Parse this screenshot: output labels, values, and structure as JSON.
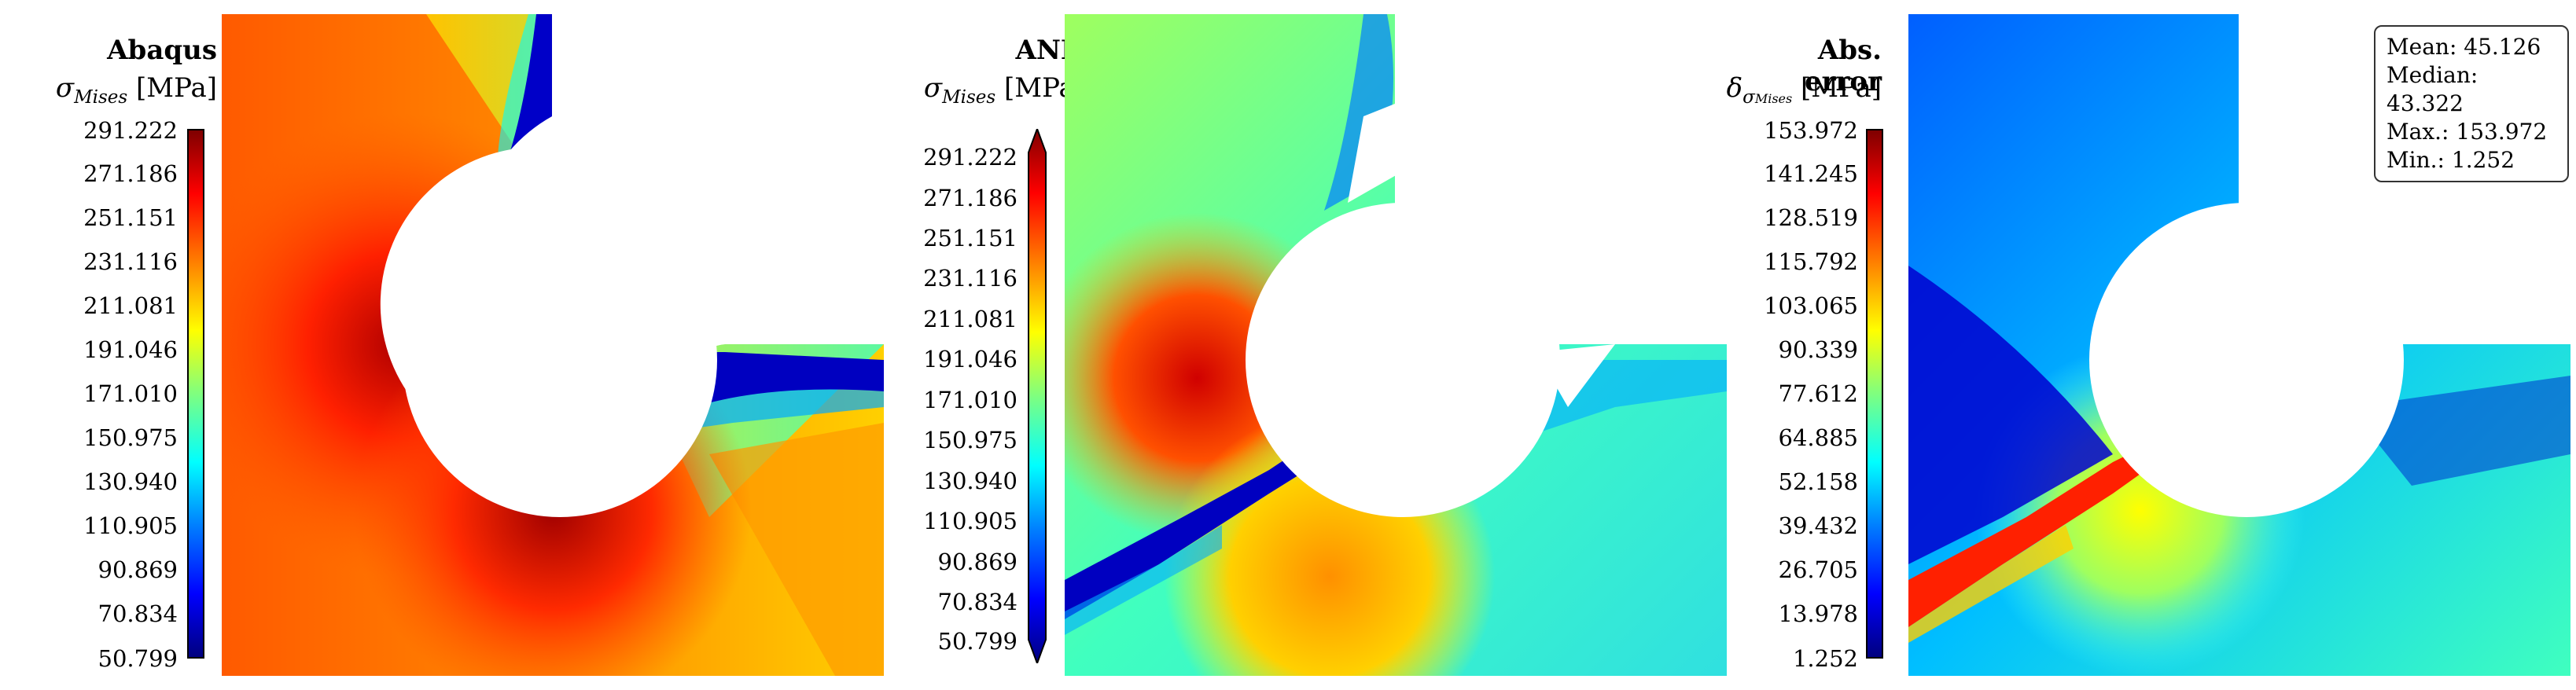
{
  "panels": [
    {
      "title": "Abaqus",
      "quantity_symbol": "σ",
      "quantity_subscript": "Mises",
      "unit": "[MPa]",
      "colorbar_ticks": [
        "291.222",
        "271.186",
        "251.151",
        "231.116",
        "211.081",
        "191.046",
        "171.010",
        "150.975",
        "130.940",
        "110.905",
        "90.869",
        "70.834",
        "50.799"
      ]
    },
    {
      "title": "ANN",
      "quantity_symbol": "σ",
      "quantity_subscript": "Mises",
      "unit": "[MPa]",
      "colorbar_ticks": [
        "291.222",
        "271.186",
        "251.151",
        "231.116",
        "211.081",
        "191.046",
        "171.010",
        "150.975",
        "130.940",
        "110.905",
        "90.869",
        "70.834",
        "50.799"
      ]
    },
    {
      "title": "Abs. error",
      "quantity_symbol": "δ",
      "quantity_subscript": "σ",
      "quantity_subsubscript": "Mises",
      "unit": "[MPa]",
      "colorbar_ticks": [
        "153.972",
        "141.245",
        "128.519",
        "115.792",
        "103.065",
        "90.339",
        "77.612",
        "64.885",
        "52.158",
        "39.432",
        "26.705",
        "13.978",
        "1.252"
      ],
      "stats": {
        "mean": "Mean: 45.126",
        "median": "Median: 43.322",
        "max": "Max.: 153.972",
        "min": "Min.: 1.252"
      }
    }
  ],
  "colormap": [
    "#00007f",
    "#0000ff",
    "#007fff",
    "#00ffff",
    "#7fff7f",
    "#ffff00",
    "#ff7f00",
    "#ff0000",
    "#7f0000"
  ]
}
